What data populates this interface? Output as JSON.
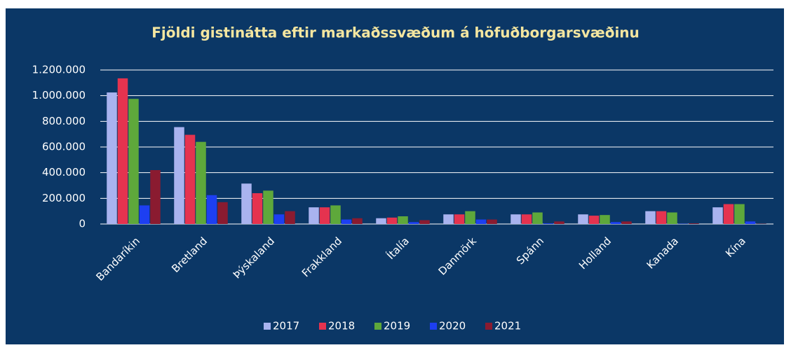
{
  "chart_data": {
    "type": "bar",
    "title": "Fjöldi gistinátta eftir markaðssvæðum á höfuðborgarsvæðinu",
    "categories": [
      "Bandaríkin",
      "Bretland",
      "Þýskaland",
      "Frakkland",
      "Ítalía",
      "Danmörk",
      "Spánn",
      "Holland",
      "Kanada",
      "Kína"
    ],
    "series": [
      {
        "name": "2017",
        "color": "#a9b3ef",
        "values": [
          1025000,
          755000,
          315000,
          130000,
          45000,
          75000,
          75000,
          75000,
          100000,
          130000
        ]
      },
      {
        "name": "2018",
        "color": "#e5334f",
        "values": [
          1135000,
          695000,
          240000,
          130000,
          50000,
          75000,
          75000,
          65000,
          100000,
          155000
        ]
      },
      {
        "name": "2019",
        "color": "#5ea83b",
        "values": [
          975000,
          640000,
          260000,
          145000,
          60000,
          100000,
          90000,
          70000,
          90000,
          155000
        ]
      },
      {
        "name": "2020",
        "color": "#1d3ff2",
        "values": [
          145000,
          225000,
          75000,
          35000,
          15000,
          35000,
          5000,
          15000,
          2000,
          20000
        ]
      },
      {
        "name": "2021",
        "color": "#8a1b30",
        "values": [
          420000,
          170000,
          100000,
          45000,
          30000,
          35000,
          20000,
          20000,
          5000,
          2000
        ]
      }
    ],
    "ylim": [
      0,
      1200000
    ],
    "yticks": [
      0,
      {
        "value": 200000,
        "label": "200.000"
      },
      {
        "value": 400000,
        "label": "400.000"
      },
      {
        "value": 600000,
        "label": "600.000"
      },
      {
        "value": 800000,
        "label": "800.000"
      },
      {
        "value": 1000000,
        "label": "1.000.000"
      },
      {
        "value": 1200000,
        "label": "1.200.000"
      }
    ],
    "grid": true,
    "legend": "bottom"
  }
}
